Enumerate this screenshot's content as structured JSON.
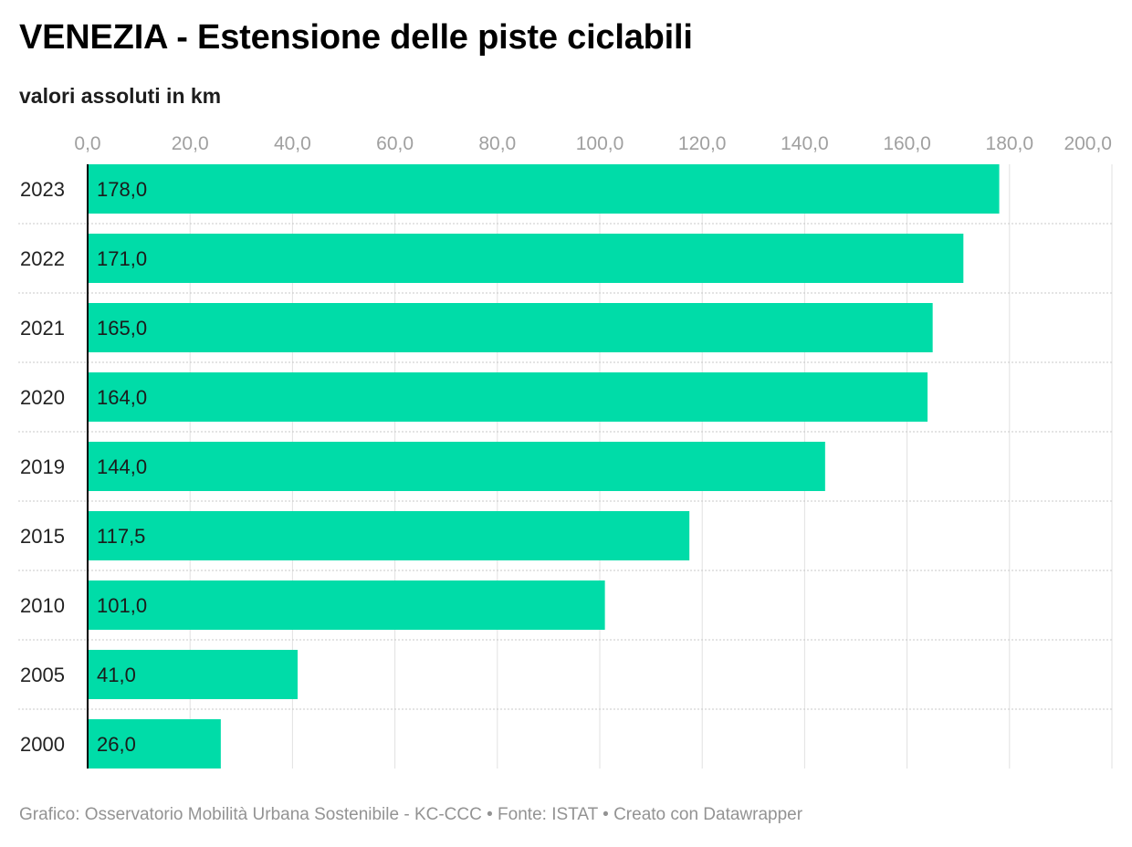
{
  "chart_data": {
    "type": "bar",
    "orientation": "horizontal",
    "title": "VENEZIA - Estensione delle piste ciclabili",
    "subtitle": "valori assoluti in km",
    "categories": [
      "2023",
      "2022",
      "2021",
      "2020",
      "2019",
      "2015",
      "2010",
      "2005",
      "2000"
    ],
    "values": [
      178.0,
      171.0,
      165.0,
      164.0,
      144.0,
      117.5,
      101.0,
      41.0,
      26.0
    ],
    "value_labels": [
      "178,0",
      "171,0",
      "165,0",
      "164,0",
      "144,0",
      "117,5",
      "101,0",
      "41,0",
      "26,0"
    ],
    "x_ticks": [
      0,
      20,
      40,
      60,
      80,
      100,
      120,
      140,
      160,
      180,
      200
    ],
    "x_tick_labels": [
      "0,0",
      "20,0",
      "40,0",
      "60,0",
      "80,0",
      "100,0",
      "120,0",
      "140,0",
      "160,0",
      "180,0",
      "200,0"
    ],
    "xlim": [
      0,
      200
    ],
    "grid": true,
    "xlabel": "",
    "ylabel": "",
    "bar_color": "#00dca8",
    "footer": "Grafico: Osservatorio Mobilità Urbana Sostenibile - KC-CCC • Fonte: ISTAT • Creato con Datawrapper"
  }
}
